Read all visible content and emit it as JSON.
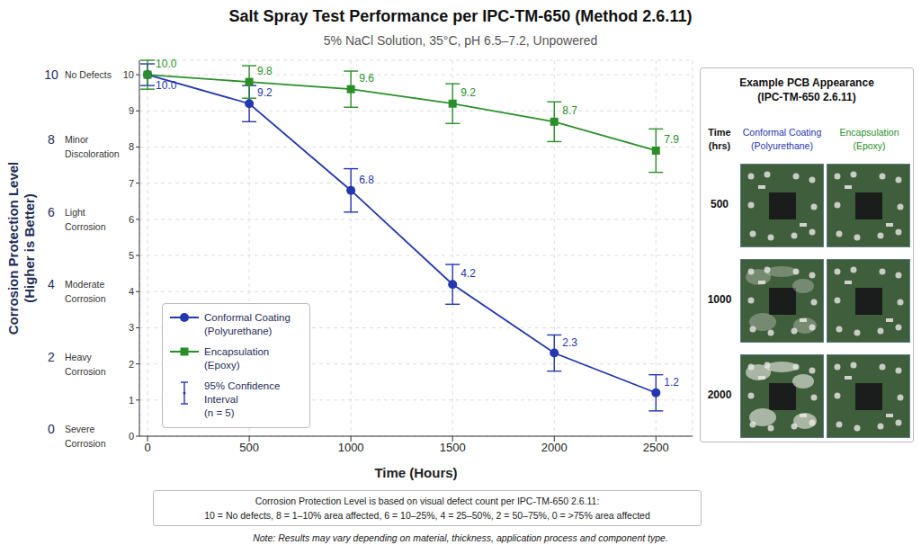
{
  "chart_data": {
    "type": "line",
    "title": "Salt Spray Test Performance per IPC-TM-650 (Method 2.6.11)",
    "subtitle": "5% NaCl Solution, 35°C, pH 6.5–7.2, Unpowered",
    "x_label": "Time (Hours)",
    "y_label": "Corrosion Protection Level (Higher is Better)",
    "x": [
      0,
      500,
      1000,
      1500,
      2000,
      2500
    ],
    "xlim": [
      -40,
      2680
    ],
    "xticks": [
      0,
      500,
      1000,
      1500,
      2000,
      2500
    ],
    "ylim": [
      0,
      10.4
    ],
    "yticks": [
      0,
      1,
      2,
      3,
      4,
      5,
      6,
      7,
      8,
      9,
      10
    ],
    "grid": true,
    "legend": "lower left",
    "data_labels": true,
    "levels": [
      {
        "value": 10,
        "label": "No Defects"
      },
      {
        "value": 8,
        "label": "Minor Discoloration"
      },
      {
        "value": 6,
        "label": "Light Corrosion"
      },
      {
        "value": 4,
        "label": "Moderate Corrosion"
      },
      {
        "value": 2,
        "label": "Heavy Corrosion"
      },
      {
        "value": 0,
        "label": "Severe Corrosion"
      }
    ],
    "series": [
      {
        "name": "Conformal Coating (Polyurethane)",
        "color": "#2436b0",
        "marker": "circle",
        "values": [
          10,
          9.2,
          6.8,
          4.2,
          2.3,
          1.2
        ],
        "value_labels": [
          "10.0",
          "9.2",
          "6.8",
          "4.2",
          "2.3",
          "1.2"
        ],
        "errors": [
          0.3,
          0.5,
          0.6,
          0.55,
          0.5,
          0.5
        ]
      },
      {
        "name": "Encapsulation (Epoxy)",
        "color": "#2a8f2a",
        "marker": "square",
        "values": [
          10,
          9.8,
          9.6,
          9.2,
          8.7,
          7.9
        ],
        "value_labels": [
          "10.0",
          "9.8",
          "9.6",
          "9.2",
          "8.7",
          "7.9"
        ],
        "errors": [
          0.4,
          0.45,
          0.5,
          0.55,
          0.55,
          0.6
        ]
      }
    ],
    "error_bar_label": "95% Confidence Interval (n = 5)",
    "caption": [
      "Corrosion Protection Level is based on visual defect count per IPC-TM-650 2.6.11:",
      "10 = No defects, 8 = 1–10% area affected, 6 = 10–25%, 4 = 25–50%, 2 = 50–75%, 0 = >75% area affected"
    ],
    "note": "Note: Results may vary depending on material, thickness, application process and component type.",
    "panel": {
      "title": "Example PCB Appearance (IPC-TM-650 2.6.11)",
      "row_header": "Time (hrs)",
      "columns": [
        "Conformal Coating (Polyurethane)",
        "Encapsulation (Epoxy)"
      ],
      "rows": [
        500,
        1000,
        2000
      ]
    }
  }
}
